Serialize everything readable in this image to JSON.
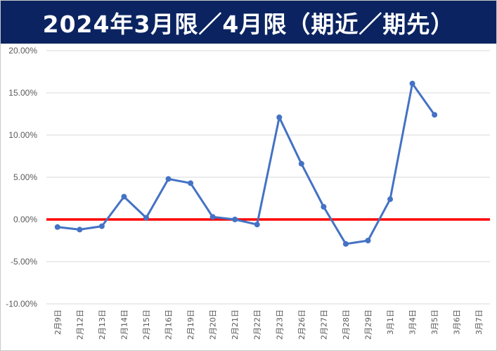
{
  "chart_data": {
    "type": "line",
    "title": "2024年3月限／4月限（期近／期先）",
    "categories": [
      "2月9日",
      "2月12日",
      "2月13日",
      "2月14日",
      "2月15日",
      "2月16日",
      "2月19日",
      "2月20日",
      "2月21日",
      "2月22日",
      "2月23日",
      "2月26日",
      "2月27日",
      "2月28日",
      "2月29日",
      "3月1日",
      "3月4日",
      "3月5日",
      "3月6日",
      "3月7日"
    ],
    "series": [
      {
        "values": [
          -0.9,
          -1.2,
          -0.8,
          2.7,
          0.2,
          4.8,
          4.3,
          0.3,
          0.0,
          -0.6,
          12.1,
          6.6,
          1.5,
          -2.9,
          -2.5,
          2.4,
          16.1,
          12.4,
          null,
          null
        ],
        "color": "#4472c4"
      }
    ],
    "y_ticks": [
      "20.00%",
      "15.00%",
      "10.00%",
      "5.00%",
      "0.00%",
      "-5.00%",
      "-10.00%"
    ],
    "ylim": [
      -10,
      20
    ],
    "zero_line_color": "#ff0000",
    "grid": true,
    "legend": "none"
  }
}
